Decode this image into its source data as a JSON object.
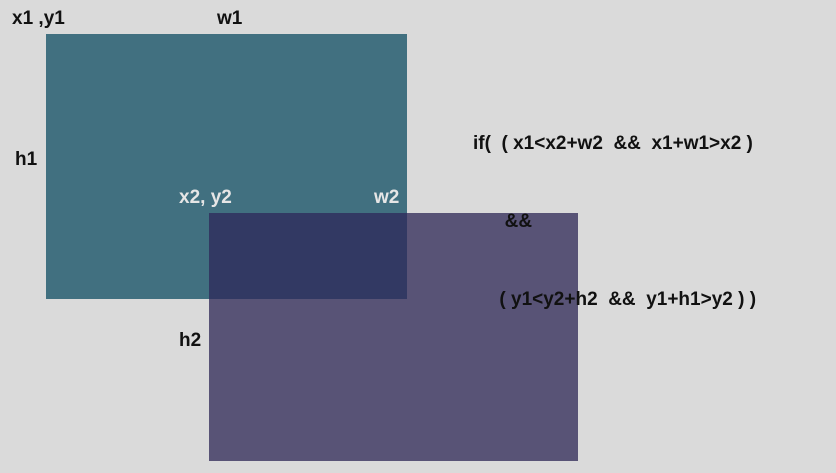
{
  "colors": {
    "background": "#dadada",
    "rect1_fill": "#417080",
    "rect2_fill": "#585376",
    "overlap_fill": "#323963",
    "dark_text": "#111111",
    "light_text": "#e6e6e6"
  },
  "labels": {
    "x1y1": "x1 ,y1",
    "w1": "w1",
    "h1": "h1",
    "x2y2": "x2, y2",
    "w2": "w2",
    "h2": "h2"
  },
  "condition": {
    "line1": "if(  ( x1<x2+w2  &&  x1+w1>x2 )",
    "line2": "      &&",
    "line3": "     ( y1<y2+h2  &&  y1+h1>y2 ) )"
  }
}
